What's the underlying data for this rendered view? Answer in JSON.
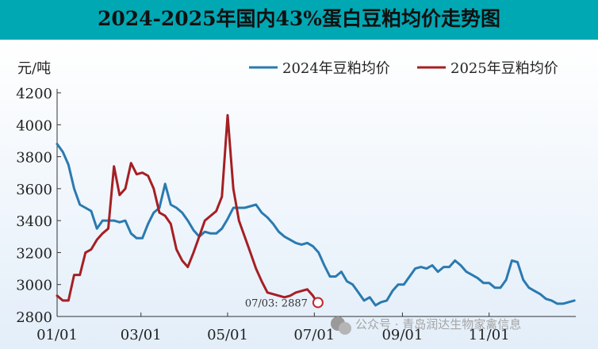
{
  "chart_data": {
    "type": "line",
    "title": "2024-2025年国内43%蛋白豆粕均价走势图",
    "ylabel": "元/吨",
    "xlabel": "",
    "ylim": [
      2800,
      4200
    ],
    "yticks": [
      2800,
      3000,
      3200,
      3400,
      3600,
      3800,
      4000,
      4200
    ],
    "xtick_labels": [
      "01/01",
      "03/01",
      "05/01",
      "07/01",
      "09/01",
      "11/01"
    ],
    "grid": false,
    "legend_position": "top-right",
    "series": [
      {
        "name": "2024年豆粕均价",
        "color": "#2a7ab0",
        "x": [
          "01/01",
          "01/05",
          "01/09",
          "01/13",
          "01/17",
          "01/21",
          "01/25",
          "01/29",
          "02/02",
          "02/06",
          "02/10",
          "02/14",
          "02/18",
          "02/22",
          "02/26",
          "03/02",
          "03/06",
          "03/10",
          "03/14",
          "03/18",
          "03/22",
          "03/26",
          "03/30",
          "04/03",
          "04/07",
          "04/11",
          "04/15",
          "04/19",
          "04/23",
          "04/27",
          "05/01",
          "05/05",
          "05/09",
          "05/13",
          "05/17",
          "05/21",
          "05/25",
          "05/29",
          "06/02",
          "06/06",
          "06/10",
          "06/14",
          "06/18",
          "06/22",
          "06/26",
          "06/30",
          "07/04",
          "07/08",
          "07/12",
          "07/16",
          "07/20",
          "07/24",
          "07/28",
          "08/01",
          "08/05",
          "08/09",
          "08/13",
          "08/17",
          "08/21",
          "08/25",
          "08/29",
          "09/02",
          "09/06",
          "09/10",
          "09/14",
          "09/18",
          "09/22",
          "09/26",
          "09/30",
          "10/04",
          "10/08",
          "10/12",
          "10/16",
          "10/20",
          "10/24",
          "10/28",
          "11/01",
          "11/05",
          "11/09",
          "11/13",
          "11/17",
          "11/21",
          "11/25",
          "11/29",
          "12/03",
          "12/07",
          "12/11",
          "12/15",
          "12/19",
          "12/23",
          "12/27",
          "12/31"
        ],
        "values": [
          3880,
          3830,
          3750,
          3600,
          3500,
          3480,
          3460,
          3350,
          3400,
          3400,
          3400,
          3390,
          3400,
          3320,
          3290,
          3290,
          3380,
          3450,
          3480,
          3630,
          3500,
          3480,
          3450,
          3400,
          3340,
          3300,
          3330,
          3320,
          3320,
          3350,
          3410,
          3480,
          3480,
          3480,
          3490,
          3500,
          3450,
          3420,
          3380,
          3330,
          3300,
          3280,
          3260,
          3250,
          3260,
          3240,
          3200,
          3120,
          3050,
          3050,
          3080,
          3020,
          3000,
          2950,
          2900,
          2920,
          2870,
          2890,
          2900,
          2960,
          3000,
          3000,
          3050,
          3100,
          3110,
          3100,
          3120,
          3080,
          3110,
          3110,
          3150,
          3120,
          3080,
          3060,
          3040,
          3010,
          3010,
          2980,
          2980,
          3030,
          3150,
          3140,
          3030,
          2980,
          2960,
          2940,
          2910,
          2900,
          2880,
          2880,
          2890,
          2900
        ]
      },
      {
        "name": "2025年豆粕均价",
        "color": "#a51f24",
        "x": [
          "01/01",
          "01/05",
          "01/09",
          "01/13",
          "01/17",
          "01/21",
          "01/25",
          "01/29",
          "02/02",
          "02/06",
          "02/10",
          "02/14",
          "02/18",
          "02/22",
          "02/26",
          "03/02",
          "03/06",
          "03/10",
          "03/14",
          "03/18",
          "03/22",
          "03/26",
          "03/30",
          "04/03",
          "04/07",
          "04/11",
          "04/15",
          "04/19",
          "04/23",
          "04/27",
          "05/01",
          "05/05",
          "05/09",
          "05/13",
          "05/17",
          "05/21",
          "05/25",
          "05/29",
          "06/02",
          "06/06",
          "06/10",
          "06/14",
          "06/18",
          "06/22",
          "06/26",
          "06/30",
          "07/03"
        ],
        "values": [
          2930,
          2900,
          2900,
          3060,
          3060,
          3200,
          3220,
          3280,
          3320,
          3350,
          3740,
          3560,
          3600,
          3760,
          3690,
          3700,
          3680,
          3600,
          3450,
          3430,
          3380,
          3220,
          3150,
          3110,
          3200,
          3300,
          3400,
          3430,
          3460,
          3550,
          4060,
          3600,
          3400,
          3300,
          3200,
          3100,
          3020,
          2950,
          2940,
          2930,
          2920,
          2930,
          2950,
          2960,
          2970,
          2930,
          2887
        ]
      }
    ],
    "annotations": [
      {
        "text": "07/03: 2887",
        "x": "07/03",
        "y": 2887
      }
    ]
  },
  "watermark": "公众号 · 青岛润达生物家禽信息"
}
